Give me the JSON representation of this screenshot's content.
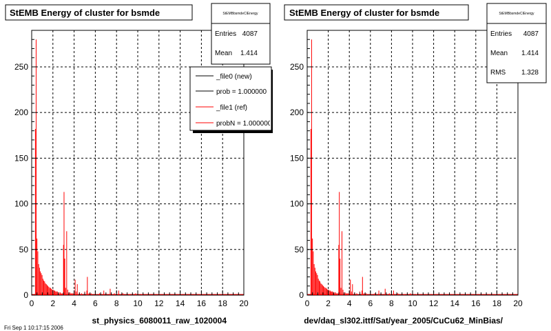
{
  "footer": {
    "fragment": "Fri Sep  1 10:17:15 2006"
  },
  "colors": {
    "hist_ref": "#ff0000",
    "hist_new": "#000000",
    "grid": "#000000",
    "frame": "#000000",
    "background": "#ffffff"
  },
  "chart_data": [
    {
      "type": "histogram",
      "title": "StEMB Energy of cluster for bsmde",
      "xlabel": "st_physics_6080011_raw_1020004",
      "ylabel": "",
      "xlim": [
        0,
        20
      ],
      "ylim": [
        0,
        290
      ],
      "xticks": [
        0,
        2,
        4,
        6,
        8,
        10,
        12,
        14,
        16,
        18,
        20
      ],
      "yticks": [
        0,
        50,
        100,
        150,
        200,
        250
      ],
      "grid": true,
      "stats": {
        "name": "StEMBbsmdeClEnergy",
        "entries_label": "Entries",
        "entries": "4087",
        "mean_label": "Mean",
        "mean": "1.414"
      },
      "legend": {
        "position": "top-right",
        "entries": [
          {
            "label": "_file0 (new)",
            "color": "#000000"
          },
          {
            "label": "prob = 1.000000",
            "color": "#000000"
          },
          {
            "label": "_file1 (ref)",
            "color": "#ff0000"
          },
          {
            "label": "probN = 1.000000",
            "color": "#ff0000"
          }
        ]
      },
      "series": [
        {
          "style": "spikes",
          "color": "#ff0000",
          "points": [
            [
              0.35,
              182
            ],
            [
              0.42,
              280
            ],
            [
              0.5,
              62
            ],
            [
              0.58,
              48
            ],
            [
              0.66,
              34
            ],
            [
              0.74,
              30
            ],
            [
              0.82,
              26
            ],
            [
              0.9,
              24
            ],
            [
              0.98,
              22
            ],
            [
              1.06,
              18
            ],
            [
              1.14,
              16
            ],
            [
              1.22,
              15
            ],
            [
              1.3,
              13
            ],
            [
              1.38,
              12
            ],
            [
              1.46,
              11
            ],
            [
              1.54,
              10
            ],
            [
              1.62,
              9
            ],
            [
              1.7,
              8
            ],
            [
              1.78,
              8
            ],
            [
              1.86,
              7
            ],
            [
              1.94,
              6
            ],
            [
              2.02,
              6
            ],
            [
              2.1,
              5
            ],
            [
              2.18,
              5
            ],
            [
              2.26,
              4
            ],
            [
              2.34,
              4
            ],
            [
              2.42,
              4
            ],
            [
              2.5,
              3
            ],
            [
              2.6,
              3
            ],
            [
              2.7,
              3
            ],
            [
              2.8,
              2
            ],
            [
              2.9,
              2
            ],
            [
              3.0,
              55
            ],
            [
              3.05,
              113
            ],
            [
              3.12,
              40
            ],
            [
              3.2,
              8
            ],
            [
              3.3,
              70
            ],
            [
              3.4,
              6
            ],
            [
              3.5,
              3
            ],
            [
              3.6,
              3
            ],
            [
              3.7,
              2
            ],
            [
              3.8,
              2
            ],
            [
              3.9,
              2
            ],
            [
              4.0,
              3
            ],
            [
              4.1,
              17
            ],
            [
              4.2,
              4
            ],
            [
              4.3,
              12
            ],
            [
              4.5,
              3
            ],
            [
              4.7,
              2
            ],
            [
              5.0,
              4
            ],
            [
              5.2,
              5
            ],
            [
              5.25,
              20
            ],
            [
              5.4,
              2
            ],
            [
              5.6,
              2
            ],
            [
              6.0,
              2
            ],
            [
              6.4,
              2
            ],
            [
              6.8,
              5
            ],
            [
              7.0,
              2
            ],
            [
              7.4,
              7
            ],
            [
              7.8,
              2
            ],
            [
              8.2,
              5
            ],
            [
              8.6,
              2
            ],
            [
              9.2,
              1
            ],
            [
              9.8,
              2
            ],
            [
              10.4,
              1
            ],
            [
              11.0,
              1
            ],
            [
              12.0,
              1
            ],
            [
              13.0,
              1
            ]
          ]
        }
      ]
    },
    {
      "type": "histogram",
      "title": "StEMB Energy of cluster for bsmde",
      "xlabel": "dev/daq_sl302.ittf/Sat/year_2005/CuCu62_MinBias/",
      "ylabel": "",
      "xlim": [
        0,
        20
      ],
      "ylim": [
        0,
        290
      ],
      "xticks": [
        0,
        2,
        4,
        6,
        8,
        10,
        12,
        14,
        16,
        18,
        20
      ],
      "yticks": [
        0,
        50,
        100,
        150,
        200,
        250
      ],
      "grid": true,
      "stats": {
        "name": "StEMBbsmdeClEnergy",
        "entries_label": "Entries",
        "entries": "4087",
        "mean_label": "Mean",
        "mean": "1.414",
        "rms_label": "RMS",
        "rms": "1.328"
      },
      "series": [
        {
          "style": "spikes",
          "color": "#ff0000",
          "points": [
            [
              0.35,
              182
            ],
            [
              0.42,
              280
            ],
            [
              0.5,
              62
            ],
            [
              0.58,
              48
            ],
            [
              0.66,
              34
            ],
            [
              0.74,
              30
            ],
            [
              0.82,
              26
            ],
            [
              0.9,
              24
            ],
            [
              0.98,
              22
            ],
            [
              1.06,
              18
            ],
            [
              1.14,
              16
            ],
            [
              1.22,
              15
            ],
            [
              1.3,
              13
            ],
            [
              1.38,
              12
            ],
            [
              1.46,
              11
            ],
            [
              1.54,
              10
            ],
            [
              1.62,
              9
            ],
            [
              1.7,
              8
            ],
            [
              1.78,
              8
            ],
            [
              1.86,
              7
            ],
            [
              1.94,
              6
            ],
            [
              2.02,
              6
            ],
            [
              2.1,
              5
            ],
            [
              2.18,
              5
            ],
            [
              2.26,
              4
            ],
            [
              2.34,
              4
            ],
            [
              2.42,
              4
            ],
            [
              2.5,
              3
            ],
            [
              2.6,
              3
            ],
            [
              2.7,
              3
            ],
            [
              2.8,
              2
            ],
            [
              2.9,
              2
            ],
            [
              3.0,
              55
            ],
            [
              3.05,
              113
            ],
            [
              3.12,
              40
            ],
            [
              3.2,
              8
            ],
            [
              3.3,
              70
            ],
            [
              3.4,
              6
            ],
            [
              3.5,
              3
            ],
            [
              3.6,
              3
            ],
            [
              3.7,
              2
            ],
            [
              3.8,
              2
            ],
            [
              3.9,
              2
            ],
            [
              4.0,
              3
            ],
            [
              4.1,
              17
            ],
            [
              4.2,
              4
            ],
            [
              4.3,
              12
            ],
            [
              4.5,
              3
            ],
            [
              4.7,
              2
            ],
            [
              5.0,
              4
            ],
            [
              5.2,
              5
            ],
            [
              5.25,
              20
            ],
            [
              5.4,
              2
            ],
            [
              5.6,
              2
            ],
            [
              6.0,
              2
            ],
            [
              6.4,
              2
            ],
            [
              6.8,
              5
            ],
            [
              7.0,
              2
            ],
            [
              7.4,
              7
            ],
            [
              7.8,
              2
            ],
            [
              8.2,
              5
            ],
            [
              8.6,
              2
            ],
            [
              9.2,
              1
            ],
            [
              9.8,
              2
            ],
            [
              10.4,
              1
            ],
            [
              11.0,
              1
            ],
            [
              12.0,
              1
            ],
            [
              13.0,
              1
            ]
          ]
        }
      ]
    }
  ]
}
